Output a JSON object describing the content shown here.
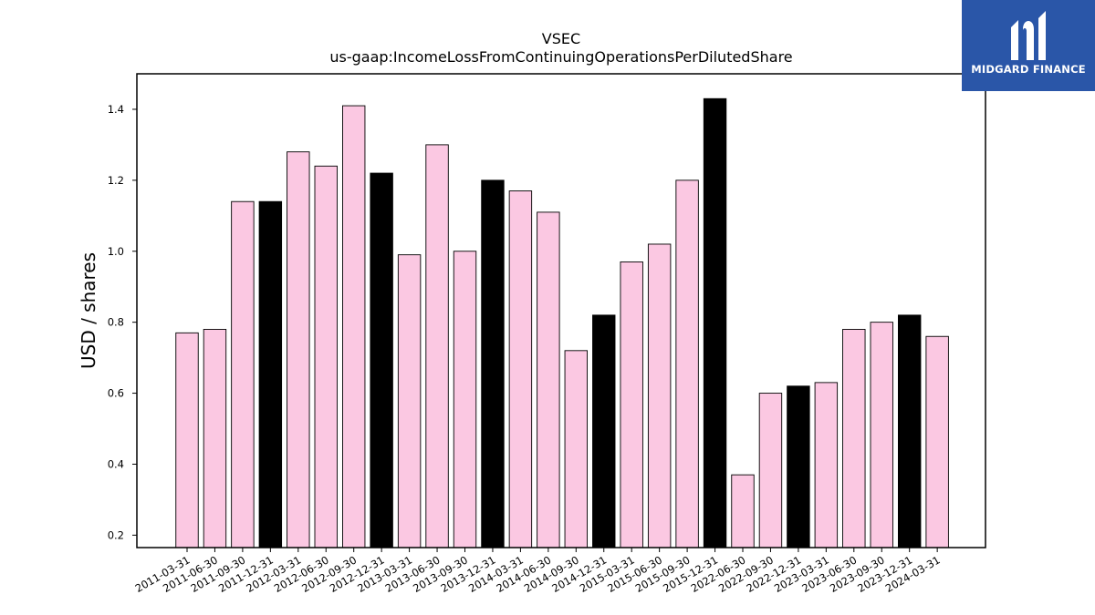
{
  "chart_data": {
    "type": "bar",
    "title": "VSEC",
    "subtitle": "us-gaap:IncomeLossFromContinuingOperationsPerDilutedShare",
    "xlabel": "",
    "ylabel": "USD / shares",
    "ylim": [
      0.165,
      1.5
    ],
    "yticks": [
      "0.2",
      "0.4",
      "0.6",
      "0.8",
      "1.0",
      "1.2",
      "1.4"
    ],
    "grid": false,
    "legend": "none",
    "categories": [
      "2011-03-31",
      "2011-06-30",
      "2011-09-30",
      "2011-12-31",
      "2012-03-31",
      "2012-06-30",
      "2012-09-30",
      "2012-12-31",
      "2013-03-31",
      "2013-06-30",
      "2013-09-30",
      "2013-12-31",
      "2014-03-31",
      "2014-06-30",
      "2014-09-30",
      "2014-12-31",
      "2015-03-31",
      "2015-06-30",
      "2015-09-30",
      "2015-12-31",
      "2022-06-30",
      "2022-09-30",
      "2022-12-31",
      "2023-03-31",
      "2023-06-30",
      "2023-09-30",
      "2023-12-31",
      "2024-03-31"
    ],
    "values": [
      0.77,
      0.78,
      1.14,
      1.14,
      1.28,
      1.24,
      1.41,
      1.22,
      0.99,
      1.3,
      1.0,
      1.2,
      1.17,
      1.11,
      0.72,
      0.82,
      0.97,
      1.02,
      1.2,
      1.43,
      0.37,
      0.6,
      0.62,
      0.63,
      0.78,
      0.8,
      0.82,
      0.76
    ],
    "bar_colors": [
      "#fbc8e2",
      "#fbc8e2",
      "#fbc8e2",
      "#000000",
      "#fbc8e2",
      "#fbc8e2",
      "#fbc8e2",
      "#000000",
      "#fbc8e2",
      "#fbc8e2",
      "#fbc8e2",
      "#000000",
      "#fbc8e2",
      "#fbc8e2",
      "#fbc8e2",
      "#000000",
      "#fbc8e2",
      "#fbc8e2",
      "#fbc8e2",
      "#000000",
      "#fbc8e2",
      "#fbc8e2",
      "#000000",
      "#fbc8e2",
      "#fbc8e2",
      "#fbc8e2",
      "#000000",
      "#fbc8e2"
    ]
  },
  "logo": {
    "text": "MIDGARD FINANCE",
    "background": "#2a56a8",
    "icon": "midgard-logo-icon"
  },
  "colors": {
    "quarter_bar": "#fbc8e2",
    "year_end_bar": "#000000",
    "edge": "#000000"
  }
}
